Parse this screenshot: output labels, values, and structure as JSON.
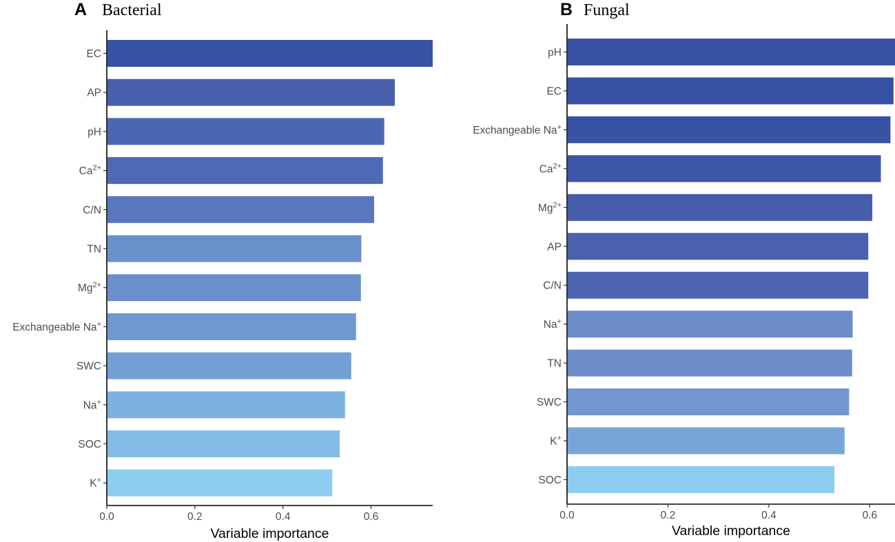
{
  "chart_data": [
    {
      "type": "bar",
      "orientation": "horizontal",
      "panel": "A",
      "title": "Bacterial",
      "xlabel": "Variable importance",
      "ylabel": "",
      "xlim": [
        0,
        0.74
      ],
      "xticks": [
        "0.0",
        "0.2",
        "0.4",
        "0.6"
      ],
      "categories": [
        {
          "base": "EC",
          "sup": ""
        },
        {
          "base": "AP",
          "sup": ""
        },
        {
          "base": "pH",
          "sup": ""
        },
        {
          "base": "Ca",
          "sup": "2+"
        },
        {
          "base": "C/N",
          "sup": ""
        },
        {
          "base": "TN",
          "sup": ""
        },
        {
          "base": "Mg",
          "sup": "2+"
        },
        {
          "base": "Exchangeable Na",
          "sup": "+"
        },
        {
          "base": "SWC",
          "sup": ""
        },
        {
          "base": "Na",
          "sup": "+"
        },
        {
          "base": "SOC",
          "sup": ""
        },
        {
          "base": "K",
          "sup": "+"
        }
      ],
      "values": [
        0.74,
        0.654,
        0.63,
        0.627,
        0.607,
        0.578,
        0.577,
        0.566,
        0.555,
        0.541,
        0.529,
        0.512
      ],
      "colors": [
        "#3652a4",
        "#4860ab",
        "#4c67b2",
        "#4e6ab5",
        "#5877bc",
        "#6a90cc",
        "#6b8fcb",
        "#7099d1",
        "#72a0d5",
        "#7bb2e1",
        "#82bde7",
        "#8dcdef"
      ]
    },
    {
      "type": "bar",
      "orientation": "horizontal",
      "panel": "B",
      "title": "Fungal",
      "xlabel": "Variable importance",
      "ylabel": "",
      "xlim": [
        0,
        0.65
      ],
      "xticks": [
        "0.0",
        "0.2",
        "0.4",
        "0.6"
      ],
      "categories": [
        {
          "base": "pH",
          "sup": ""
        },
        {
          "base": "EC",
          "sup": ""
        },
        {
          "base": "Exchangeable Na",
          "sup": "+"
        },
        {
          "base": "Ca",
          "sup": "2+"
        },
        {
          "base": "Mg",
          "sup": "2+"
        },
        {
          "base": "AP",
          "sup": ""
        },
        {
          "base": "C/N",
          "sup": ""
        },
        {
          "base": "Na",
          "sup": "+"
        },
        {
          "base": "TN",
          "sup": ""
        },
        {
          "base": "SWC",
          "sup": ""
        },
        {
          "base": "K",
          "sup": "+"
        },
        {
          "base": "SOC",
          "sup": ""
        }
      ],
      "values": [
        0.65,
        0.647,
        0.641,
        0.622,
        0.605,
        0.597,
        0.597,
        0.566,
        0.565,
        0.559,
        0.55,
        0.53
      ],
      "colors": [
        "#3650a2",
        "#3751a4",
        "#3852a4",
        "#3e56a8",
        "#465dac",
        "#4a62ae",
        "#4c64b0",
        "#6b8bc9",
        "#6c8dca",
        "#7297d0",
        "#78a5d8",
        "#8ccdef"
      ]
    }
  ]
}
